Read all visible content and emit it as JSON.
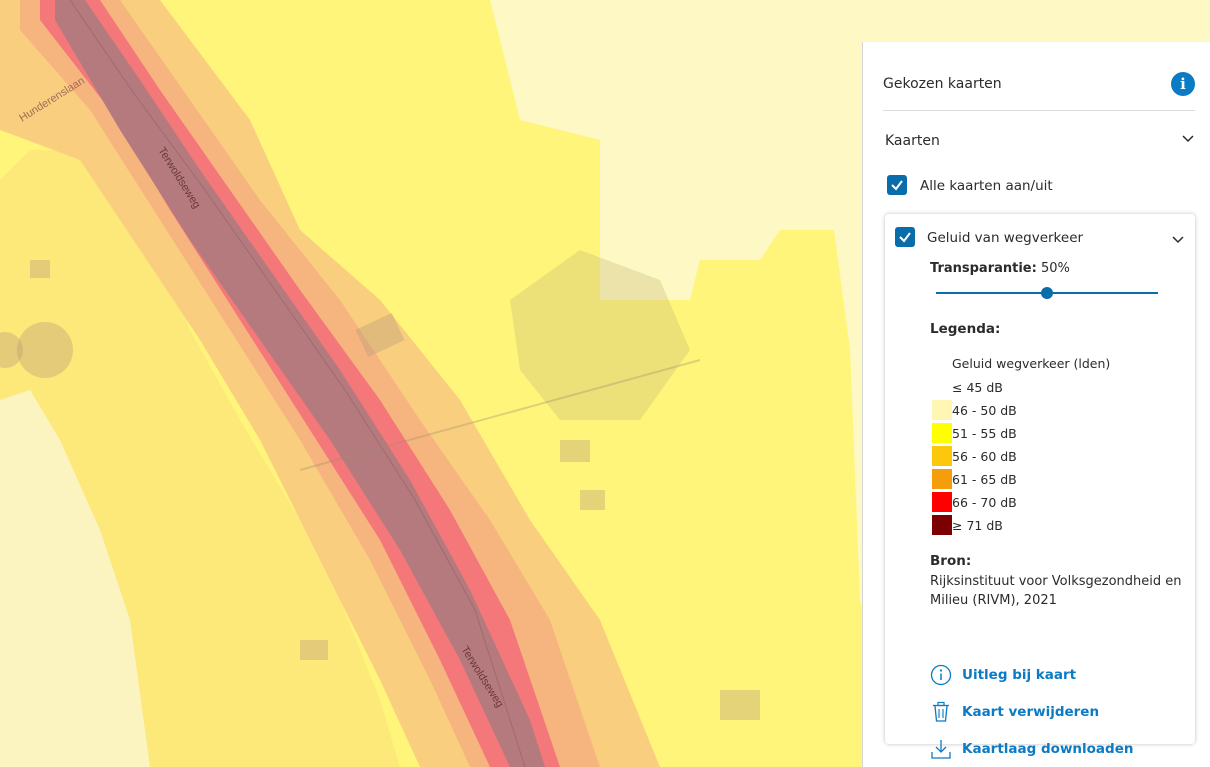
{
  "map": {
    "street_labels": [
      "Hunderenslaan",
      "Terwoldseweg",
      "Terwoldseweg"
    ],
    "colors": {
      "background": "#fff57a",
      "very_light": "#fdf8c4",
      "light_orange": "#f9d58a",
      "orange": "#f6b57e",
      "red": "#f4787a",
      "dark_red": "#b57a7e"
    }
  },
  "panel": {
    "title": "Gekozen kaarten",
    "info_icon": "info-icon",
    "section_title": "Kaarten",
    "all_toggle_label": "Alle kaarten aan/uit",
    "all_toggle_checked": true,
    "layer": {
      "name": "Geluid van wegverkeer",
      "checked": true,
      "transparency_label": "Transparantie:",
      "transparency_value": "50%",
      "transparency_fraction": 0.5,
      "legend_title": "Legenda:",
      "legend_subtitle": "Geluid wegverkeer (lden)",
      "legend": [
        {
          "label": "≤ 45 dB",
          "color": "#ffffff"
        },
        {
          "label": "46 - 50 dB",
          "color": "#fdf7b3"
        },
        {
          "label": "51 - 55 dB",
          "color": "#ffff00"
        },
        {
          "label": "56 - 60 dB",
          "color": "#fcc80b"
        },
        {
          "label": "61 - 65 dB",
          "color": "#f59e0b"
        },
        {
          "label": "66 - 70 dB",
          "color": "#ff0000"
        },
        {
          "label": "≥ 71 dB",
          "color": "#7d0000"
        }
      ],
      "source_title": "Bron:",
      "source_text": "Rijksinstituut voor Volksgezondheid en Milieu (RIVM), 2021",
      "actions": [
        {
          "label": "Uitleg bij kaart",
          "icon": "info-circle-icon"
        },
        {
          "label": "Kaart verwijderen",
          "icon": "trash-icon"
        },
        {
          "label": "Kaartlaag downloaden",
          "icon": "download-icon"
        }
      ]
    }
  }
}
